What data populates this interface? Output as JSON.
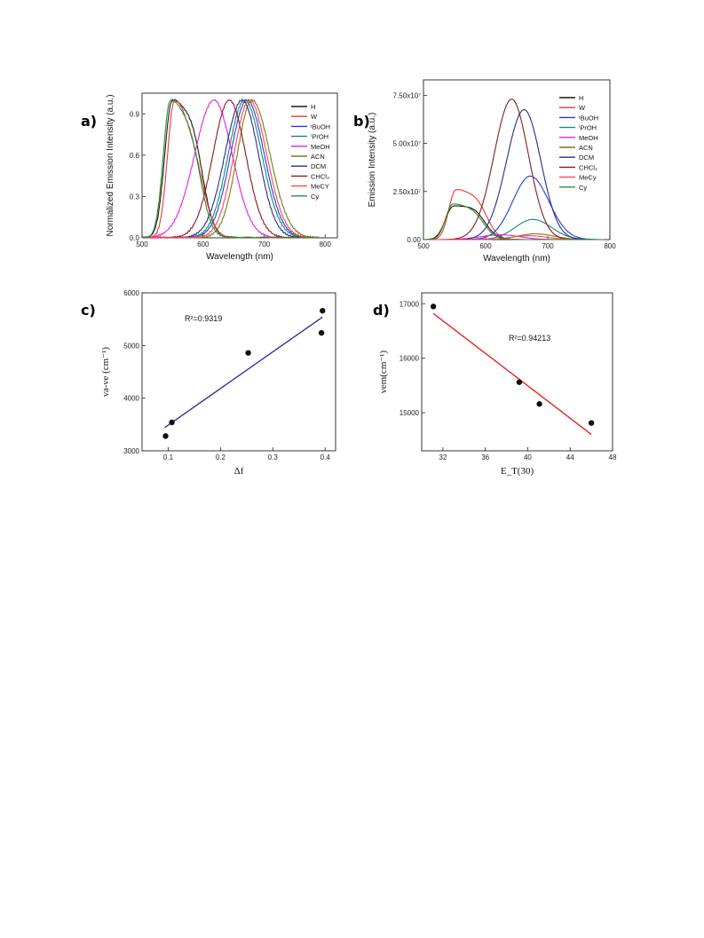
{
  "panels": {
    "a": {
      "label": "a)"
    },
    "b": {
      "label": "b)"
    },
    "c": {
      "label": "c)"
    },
    "d": {
      "label": "d)"
    }
  },
  "chart_data": [
    {
      "id": "a",
      "type": "line",
      "xlabel": "Wavelength (nm)",
      "ylabel": "Normalized Emission Intensity (a.u.)",
      "xlim": [
        500,
        820
      ],
      "ylim": [
        0,
        1.05
      ],
      "xticks": [
        500,
        600,
        700,
        800
      ],
      "yticks": [
        0.0,
        0.3,
        0.6,
        0.9
      ],
      "ytick_labels": [
        "0.0",
        "0.3",
        "0.6",
        "0.9"
      ],
      "legend_position": "top-right",
      "series": [
        {
          "name": "H",
          "color": "#1a1a1a",
          "peak": 549,
          "width_l": 17,
          "width_r": 40,
          "shoulder": 0.35
        },
        {
          "name": "W",
          "color": "#e53935",
          "peak": 553,
          "width_l": 16,
          "width_r": 38,
          "shoulder": 0.2
        },
        {
          "name": "ᵗBuOH",
          "color": "#1e3fd8",
          "peak": 672,
          "width_l": 38,
          "width_r": 40,
          "shoulder": 0
        },
        {
          "name": "ⁱPrOH",
          "color": "#16857a",
          "peak": 668,
          "width_l": 38,
          "width_r": 40,
          "shoulder": 0
        },
        {
          "name": "MeOH",
          "color": "#e020e0",
          "peak": 618,
          "width_l": 45,
          "width_r": 42,
          "shoulder": 0
        },
        {
          "name": "ACN",
          "color": "#7a7a1a",
          "peak": 680,
          "width_l": 34,
          "width_r": 42,
          "shoulder": 0
        },
        {
          "name": "DCM",
          "color": "#2a2a8a",
          "peak": 664,
          "width_l": 40,
          "width_r": 38,
          "shoulder": 0
        },
        {
          "name": "CHCl₃",
          "color": "#8b1a1a",
          "peak": 643,
          "width_l": 38,
          "width_r": 38,
          "shoulder": 0
        },
        {
          "name": "MeCY",
          "color": "#ff4455",
          "peak": 676,
          "width_l": 36,
          "width_r": 40,
          "shoulder": 0
        },
        {
          "name": "Cy",
          "color": "#2e8b2e",
          "peak": 546,
          "width_l": 16,
          "width_r": 40,
          "shoulder": 0.3
        }
      ]
    },
    {
      "id": "b",
      "type": "line",
      "xlabel": "Wavelength (nm)",
      "ylabel": "Emission Intensity",
      "xlim": [
        500,
        800
      ],
      "ylim": [
        0,
        83000000.0
      ],
      "xticks": [
        500,
        600,
        700,
        800
      ],
      "yticks": [
        0,
        25000000.0,
        50000000.0,
        75000000.0
      ],
      "ytick_labels": [
        "0.00",
        "2.50x10⁷",
        "5.00x10⁷",
        "7.50x10⁷"
      ],
      "legend_position": "top-right",
      "series": [
        {
          "name": "H",
          "color": "#1a1a1a",
          "peak": 548,
          "amp": 17500000.0,
          "width_l": 18,
          "width_r": 45,
          "shoulder": 0.35
        },
        {
          "name": "W",
          "color": "#e53935",
          "peak": 552,
          "amp": 26000000.0,
          "width_l": 16,
          "width_r": 40,
          "shoulder": 0.35
        },
        {
          "name": "ᵗBuOH",
          "color": "#1e3fd8",
          "peak": 672,
          "amp": 33000000.0,
          "width_l": 40,
          "width_r": 42,
          "shoulder": 0
        },
        {
          "name": "ⁱPrOH",
          "color": "#16857a",
          "peak": 676,
          "amp": 10500000.0,
          "width_l": 40,
          "width_r": 42,
          "shoulder": 0
        },
        {
          "name": "MeOH",
          "color": "#e020e0",
          "peak": 625,
          "amp": 2500000.0,
          "width_l": 45,
          "width_r": 42,
          "shoulder": 0
        },
        {
          "name": "ACN",
          "color": "#7a7a1a",
          "peak": 680,
          "amp": 3000000.0,
          "width_l": 40,
          "width_r": 42,
          "shoulder": 0
        },
        {
          "name": "DCM",
          "color": "#2a2a8a",
          "peak": 662,
          "amp": 67500000.0,
          "width_l": 40,
          "width_r": 38,
          "shoulder": 0
        },
        {
          "name": "CHCl₃",
          "color": "#8b1a1a",
          "peak": 642,
          "amp": 73000000.0,
          "width_l": 40,
          "width_r": 38,
          "shoulder": 0
        },
        {
          "name": "MeCy",
          "color": "#ff4455",
          "peak": 670,
          "amp": 2000000.0,
          "width_l": 40,
          "width_r": 40,
          "shoulder": 0
        },
        {
          "name": "Cy",
          "color": "#2e8b2e",
          "peak": 547,
          "amp": 18500000.0,
          "width_l": 16,
          "width_r": 42,
          "shoulder": 0.3
        }
      ]
    },
    {
      "id": "c",
      "type": "scatter",
      "xlabel": "Δf",
      "ylabel": "νa-νe (cm⁻¹)",
      "xlim": [
        0.05,
        0.42
      ],
      "ylim": [
        3000,
        6000
      ],
      "xticks": [
        0.1,
        0.2,
        0.3,
        0.4
      ],
      "yticks": [
        3000,
        4000,
        5000,
        6000
      ],
      "annotation": "R²=0.9319",
      "points": [
        [
          0.095,
          3280
        ],
        [
          0.107,
          3540
        ],
        [
          0.253,
          4860
        ],
        [
          0.393,
          5240
        ],
        [
          0.395,
          5660
        ]
      ],
      "fit": {
        "color": "#3030a0",
        "x": [
          0.093,
          0.395
        ],
        "y": [
          3440,
          5540
        ]
      }
    },
    {
      "id": "d",
      "type": "scatter",
      "xlabel": "E_T(30)",
      "ylabel": "νem(cm⁻¹)",
      "xlim": [
        30,
        48
      ],
      "ylim": [
        14300,
        17200
      ],
      "xticks": [
        32,
        36,
        40,
        44,
        48
      ],
      "yticks": [
        15000,
        16000,
        17000
      ],
      "annotation": "R²=0.94213",
      "points": [
        [
          31.1,
          16950
        ],
        [
          39.2,
          15560
        ],
        [
          41.1,
          15160
        ],
        [
          46.0,
          14810
        ]
      ],
      "fit": {
        "color": "#ee2020",
        "x": [
          31.1,
          46.0
        ],
        "y": [
          16820,
          14600
        ]
      }
    }
  ]
}
